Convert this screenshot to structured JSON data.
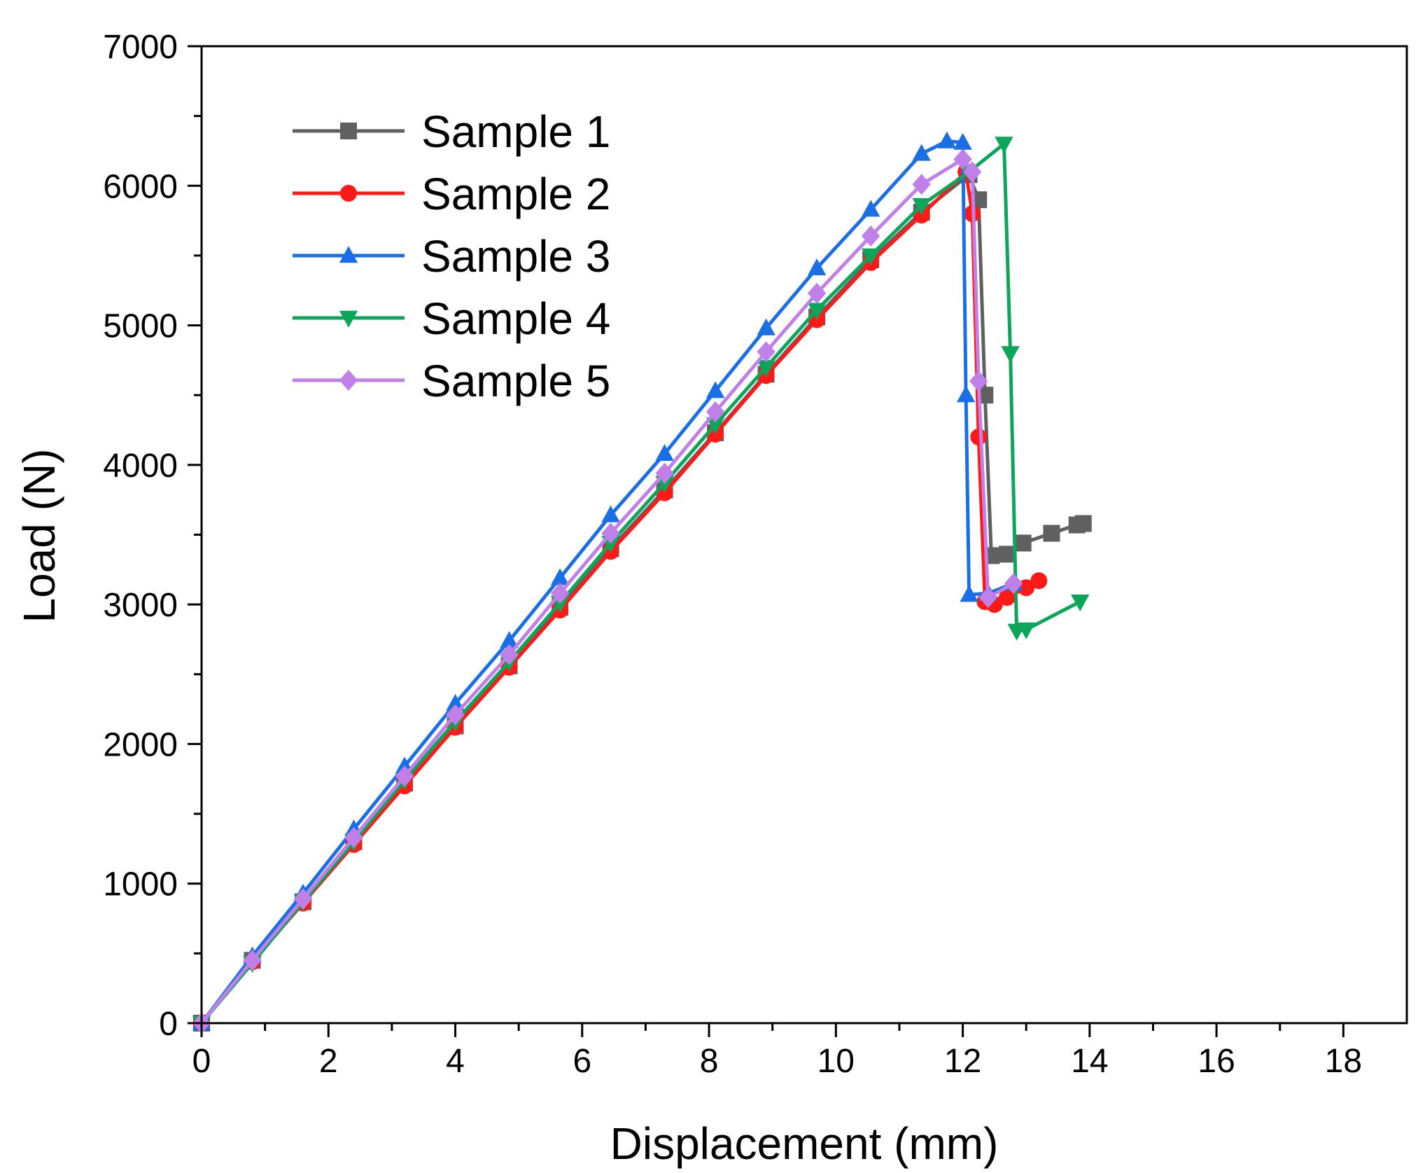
{
  "chart_data": {
    "type": "line",
    "title": "",
    "xlabel": "Displacement (mm)",
    "ylabel": "Load (N)",
    "xlim": [
      0,
      19
    ],
    "ylim": [
      0,
      7000
    ],
    "xticks": [
      0,
      2,
      4,
      6,
      8,
      10,
      12,
      14,
      16,
      18
    ],
    "yticks": [
      0,
      1000,
      2000,
      3000,
      4000,
      5000,
      6000,
      7000
    ],
    "legend_position": "top-left",
    "grid": false,
    "series": [
      {
        "name": "Sample 1",
        "color": "#606060",
        "marker": "square",
        "x": [
          0,
          0.8,
          1.6,
          2.4,
          3.2,
          4.0,
          4.85,
          5.65,
          6.45,
          7.3,
          8.1,
          8.9,
          9.7,
          10.55,
          11.35,
          12.1,
          12.25,
          12.35,
          12.45,
          12.7,
          12.95,
          13.4,
          13.8,
          13.9
        ],
        "y": [
          0,
          450,
          870,
          1300,
          1720,
          2130,
          2560,
          2980,
          3400,
          3820,
          4230,
          4650,
          5060,
          5470,
          5810,
          6080,
          5900,
          4500,
          3350,
          3360,
          3440,
          3510,
          3570,
          3580
        ]
      },
      {
        "name": "Sample 2",
        "color": "#ff1a1a",
        "marker": "circle",
        "x": [
          0,
          0.8,
          1.6,
          2.4,
          3.2,
          4.0,
          4.85,
          5.65,
          6.45,
          7.3,
          8.1,
          8.9,
          9.7,
          10.55,
          11.35,
          12.05,
          12.15,
          12.25,
          12.35,
          12.5,
          12.7,
          13.0,
          13.2
        ],
        "y": [
          0,
          440,
          860,
          1280,
          1700,
          2120,
          2550,
          2960,
          3380,
          3800,
          4220,
          4640,
          5040,
          5450,
          5790,
          6100,
          5800,
          4200,
          3020,
          3000,
          3050,
          3120,
          3170
        ]
      },
      {
        "name": "Sample 3",
        "color": "#1a6fe6",
        "marker": "triangle-up",
        "x": [
          0,
          0.8,
          1.6,
          2.4,
          3.2,
          4.0,
          4.85,
          5.65,
          6.45,
          7.3,
          8.1,
          8.9,
          9.7,
          10.55,
          11.35,
          11.75,
          12.0,
          12.05,
          12.1,
          12.4,
          12.8
        ],
        "y": [
          0,
          480,
          930,
          1390,
          1840,
          2290,
          2740,
          3190,
          3640,
          4080,
          4530,
          4980,
          5410,
          5830,
          6230,
          6320,
          6310,
          4500,
          3070,
          3080,
          3150
        ]
      },
      {
        "name": "Sample 4",
        "color": "#0da55a",
        "marker": "triangle-down",
        "x": [
          0,
          0.8,
          1.6,
          2.4,
          3.2,
          4.0,
          4.85,
          5.65,
          6.45,
          7.3,
          8.1,
          8.9,
          9.7,
          10.55,
          11.35,
          12.1,
          12.65,
          12.75,
          12.85,
          13.0,
          13.85
        ],
        "y": [
          0,
          430,
          870,
          1300,
          1740,
          2160,
          2590,
          3010,
          3440,
          3870,
          4290,
          4700,
          5110,
          5500,
          5860,
          6100,
          6300,
          4800,
          2810,
          2820,
          3020
        ]
      },
      {
        "name": "Sample 5",
        "color": "#c080e8",
        "marker": "diamond",
        "x": [
          0,
          0.8,
          1.6,
          2.4,
          3.2,
          4.0,
          4.85,
          5.65,
          6.45,
          7.3,
          8.1,
          8.9,
          9.7,
          10.55,
          11.35,
          12.0,
          12.15,
          12.25,
          12.4,
          12.8
        ],
        "y": [
          0,
          450,
          890,
          1330,
          1770,
          2210,
          2640,
          3080,
          3510,
          3940,
          4380,
          4810,
          5230,
          5640,
          6010,
          6190,
          6100,
          4600,
          3050,
          3150
        ]
      }
    ]
  }
}
